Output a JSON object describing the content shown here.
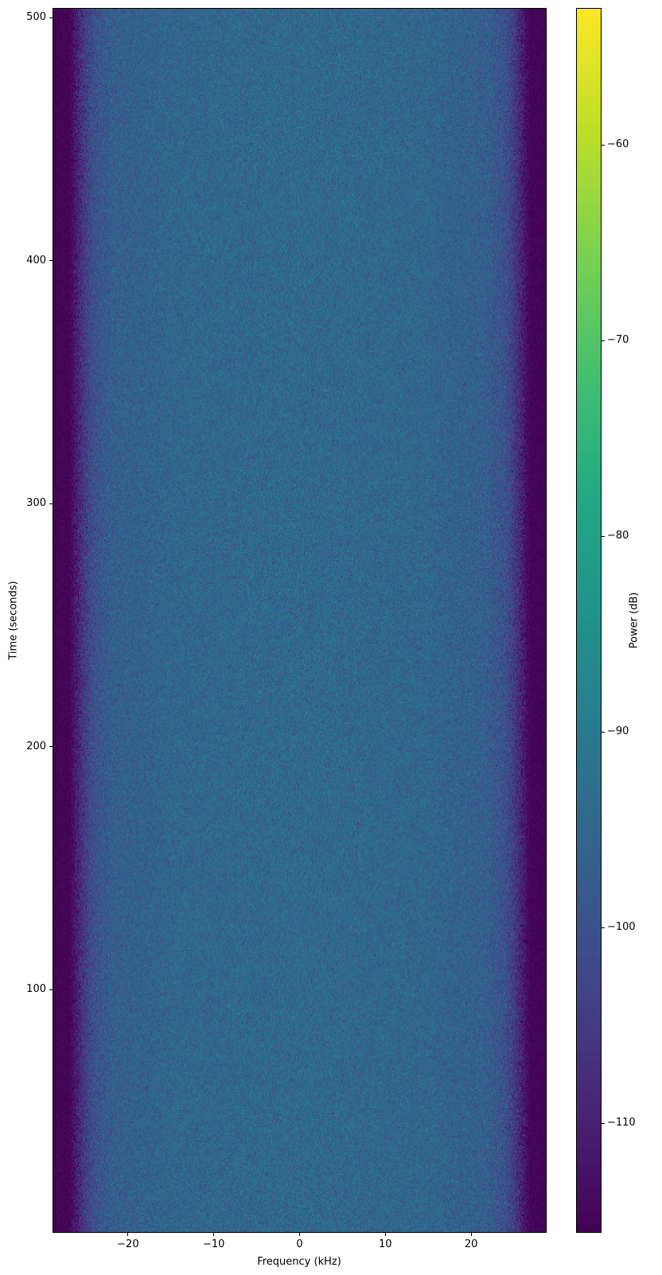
{
  "chart_data": {
    "type": "heatmap",
    "xlabel": "Frequency (kHz)",
    "ylabel": "Time (seconds)",
    "colorbar_label": "Power (dB)",
    "colormap": "viridis",
    "xlim": [
      -28.8,
      28.8
    ],
    "ylim": [
      0,
      504
    ],
    "clim": [
      -115.6,
      -53
    ],
    "xticks": [
      -20,
      -10,
      0,
      10,
      20
    ],
    "xtick_labels": [
      "−20",
      "−10",
      "0",
      "10",
      "20"
    ],
    "yticks": [
      100,
      200,
      300,
      400,
      500
    ],
    "ytick_labels": [
      "100",
      "200",
      "300",
      "400",
      "500"
    ],
    "cticks": [
      -60,
      -70,
      -80,
      -90,
      -100,
      -110
    ],
    "ctick_labels": [
      "−60",
      "−70",
      "−80",
      "−90",
      "−100",
      "−110"
    ],
    "grid": false,
    "mean_power_profile": {
      "frequency_khz": [
        -28.8,
        -27,
        -26,
        -25,
        -24,
        -22,
        -15,
        0,
        15,
        22,
        24,
        25,
        26,
        27,
        28.8
      ],
      "power_db": [
        -115.6,
        -115,
        -110,
        -104,
        -100,
        -97,
        -95,
        -94.5,
        -95,
        -97,
        -100,
        -104,
        -110,
        -115,
        -115.6
      ]
    },
    "noise_std_db": 2.5
  }
}
